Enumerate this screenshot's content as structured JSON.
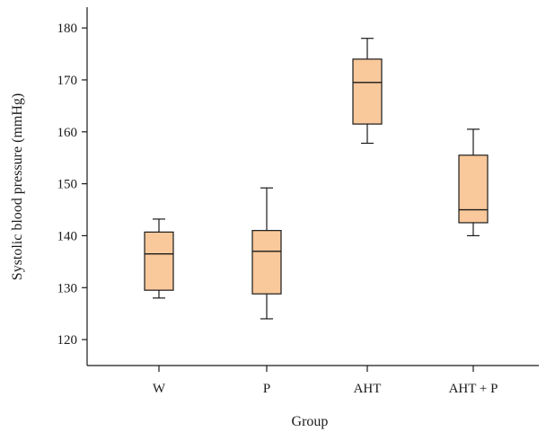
{
  "chart_data": {
    "type": "boxplot",
    "title": "",
    "xlabel": "Group",
    "ylabel": "Systolic blood pressure (mmHg)",
    "ylim": [
      115,
      184
    ],
    "yticks": [
      120,
      130,
      140,
      150,
      160,
      170,
      180
    ],
    "categories": [
      "W",
      "P",
      "AHT",
      "AHT + P"
    ],
    "series": [
      {
        "category": "W",
        "min": 128,
        "q1": 129.5,
        "median": 136.5,
        "q3": 140.7,
        "max": 143.2
      },
      {
        "category": "P",
        "min": 124,
        "q1": 128.8,
        "median": 137,
        "q3": 141,
        "max": 149.2
      },
      {
        "category": "AHT",
        "min": 157.8,
        "q1": 161.5,
        "median": 169.5,
        "q3": 174,
        "max": 178
      },
      {
        "category": "AHT + P",
        "min": 140,
        "q1": 142.5,
        "median": 145,
        "q3": 155.5,
        "max": 160.5
      }
    ],
    "box_color": "#f9c89b",
    "line_color": "#1a1a1a",
    "grid": false,
    "legend": "none"
  }
}
